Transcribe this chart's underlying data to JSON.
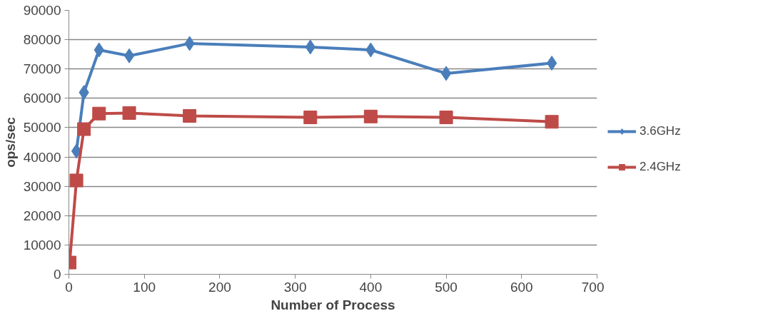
{
  "chart_data": {
    "type": "line",
    "xlabel": "Number of Process",
    "ylabel": "ops/sec",
    "x": [
      1,
      10,
      20,
      40,
      80,
      160,
      320,
      400,
      500,
      640
    ],
    "series": [
      {
        "name": "3.6GHz",
        "color": "#4a7ebb",
        "marker": "diamond",
        "values": [
          null,
          42000,
          62000,
          76500,
          74500,
          78700,
          77500,
          76500,
          68500,
          72000
        ]
      },
      {
        "name": "2.4GHz",
        "color": "#be4b48",
        "marker": "square",
        "values": [
          4000,
          32000,
          49500,
          54800,
          55000,
          54000,
          53500,
          53800,
          53500,
          52000
        ]
      }
    ],
    "xlim": [
      0,
      700
    ],
    "xticks": [
      0,
      100,
      200,
      300,
      400,
      500,
      600,
      700
    ],
    "ylim": [
      0,
      90000
    ],
    "yticks": [
      0,
      10000,
      20000,
      30000,
      40000,
      50000,
      60000,
      70000,
      80000,
      90000
    ],
    "grid": "y",
    "legend": "right",
    "line_style": "solid"
  }
}
